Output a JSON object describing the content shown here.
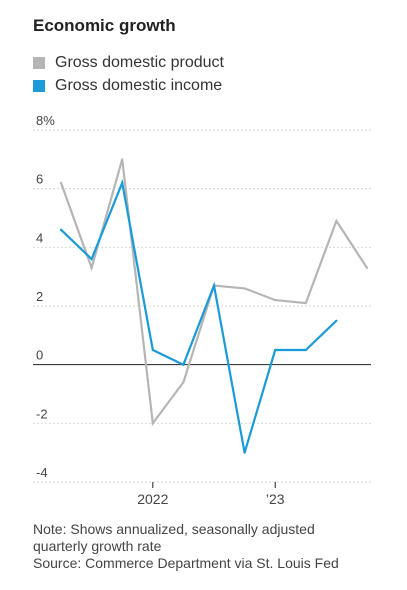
{
  "title": "Economic growth",
  "chart_data": {
    "type": "line",
    "x": [
      "2021-Q2",
      "2021-Q3",
      "2021-Q4",
      "2022-Q1",
      "2022-Q2",
      "2022-Q3",
      "2022-Q4",
      "2023-Q1",
      "2023-Q2",
      "2023-Q3",
      "2023-Q4"
    ],
    "series": [
      {
        "name": "Gross domestic product",
        "color": "#b5b5b5",
        "values": [
          6.2,
          3.3,
          7.0,
          -2.0,
          -0.6,
          2.7,
          2.6,
          2.2,
          2.1,
          4.9,
          3.3
        ]
      },
      {
        "name": "Gross domestic income",
        "color": "#1a9bd8",
        "values": [
          4.6,
          3.6,
          6.2,
          0.5,
          0.0,
          2.7,
          -3.0,
          0.5,
          0.5,
          1.5,
          null
        ]
      }
    ],
    "ylim": [
      -4,
      8
    ],
    "yticks": [
      8,
      6,
      4,
      2,
      0,
      -2,
      -4
    ],
    "ytick_labels": [
      "8%",
      "6",
      "4",
      "2",
      "0",
      "-2",
      "-4"
    ],
    "xtick_labels": [
      {
        "label": "2022",
        "at": "2022-Q1"
      },
      {
        "label": "’23",
        "at": "2023-Q1"
      }
    ],
    "grid": true,
    "legend_position": "top-left"
  },
  "notes": {
    "line1": "Note: Shows annualized, seasonally adjusted",
    "line2": "quarterly growth rate",
    "line3": "Source: Commerce Department via St. Louis Fed"
  }
}
